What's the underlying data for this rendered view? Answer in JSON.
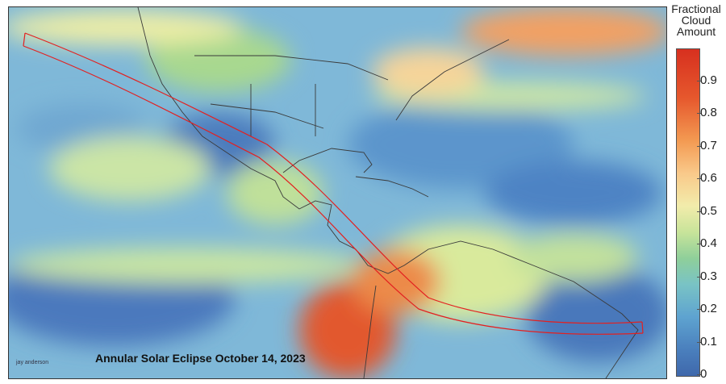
{
  "map": {
    "title": "Annular Solar Eclipse October 14, 2023",
    "author": "jay anderson",
    "colorbar": {
      "title_lines": [
        "Fractional",
        "Cloud",
        "Amount"
      ],
      "ticks": [
        "0.9",
        "0.8",
        "0.7",
        "0.6",
        "0.5",
        "0.4",
        "0.3",
        "0.2",
        "0.1",
        "0"
      ],
      "low_color": "#3f68ab",
      "high_color": "#d7301f"
    },
    "colors": {
      "path_outline": "#e32020",
      "clear_sky": "#4f7fc0",
      "moderate_cloud": "#9fd49a",
      "heavy_cloud": "#e7663a",
      "coastline": "#333333"
    }
  }
}
